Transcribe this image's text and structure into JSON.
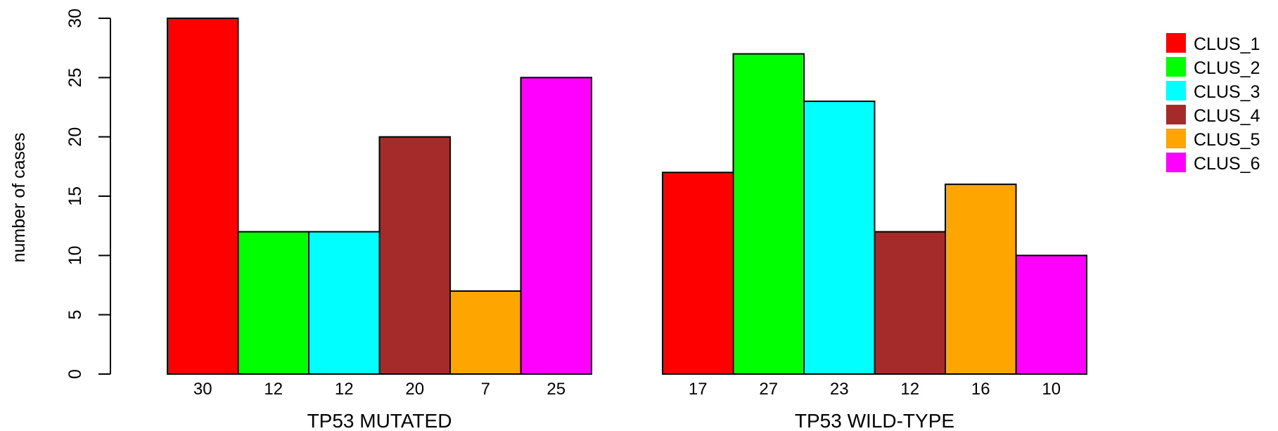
{
  "chart_data": {
    "type": "bar",
    "title": "",
    "xlabel": "",
    "ylabel": "number of cases",
    "ylim": [
      0,
      30
    ],
    "yticks": [
      0,
      5,
      10,
      15,
      20,
      25,
      30
    ],
    "grid": false,
    "legend_position": "top-right",
    "groups": [
      {
        "label": "TP53 MUTATED",
        "values": [
          30,
          12,
          12,
          20,
          7,
          25
        ],
        "value_labels": [
          "30",
          "12",
          "12",
          "20",
          "7",
          "25"
        ]
      },
      {
        "label": "TP53 WILD-TYPE",
        "values": [
          17,
          27,
          23,
          12,
          16,
          10
        ],
        "value_labels": [
          "17",
          "27",
          "23",
          "12",
          "16",
          "10"
        ]
      }
    ],
    "series": [
      {
        "name": "CLUS_1",
        "color": "#ff0000"
      },
      {
        "name": "CLUS_2",
        "color": "#00ff00"
      },
      {
        "name": "CLUS_3",
        "color": "#00ffff"
      },
      {
        "name": "CLUS_4",
        "color": "#a52a2a"
      },
      {
        "name": "CLUS_5",
        "color": "#ffa500"
      },
      {
        "name": "CLUS_6",
        "color": "#ff00ff"
      }
    ]
  }
}
